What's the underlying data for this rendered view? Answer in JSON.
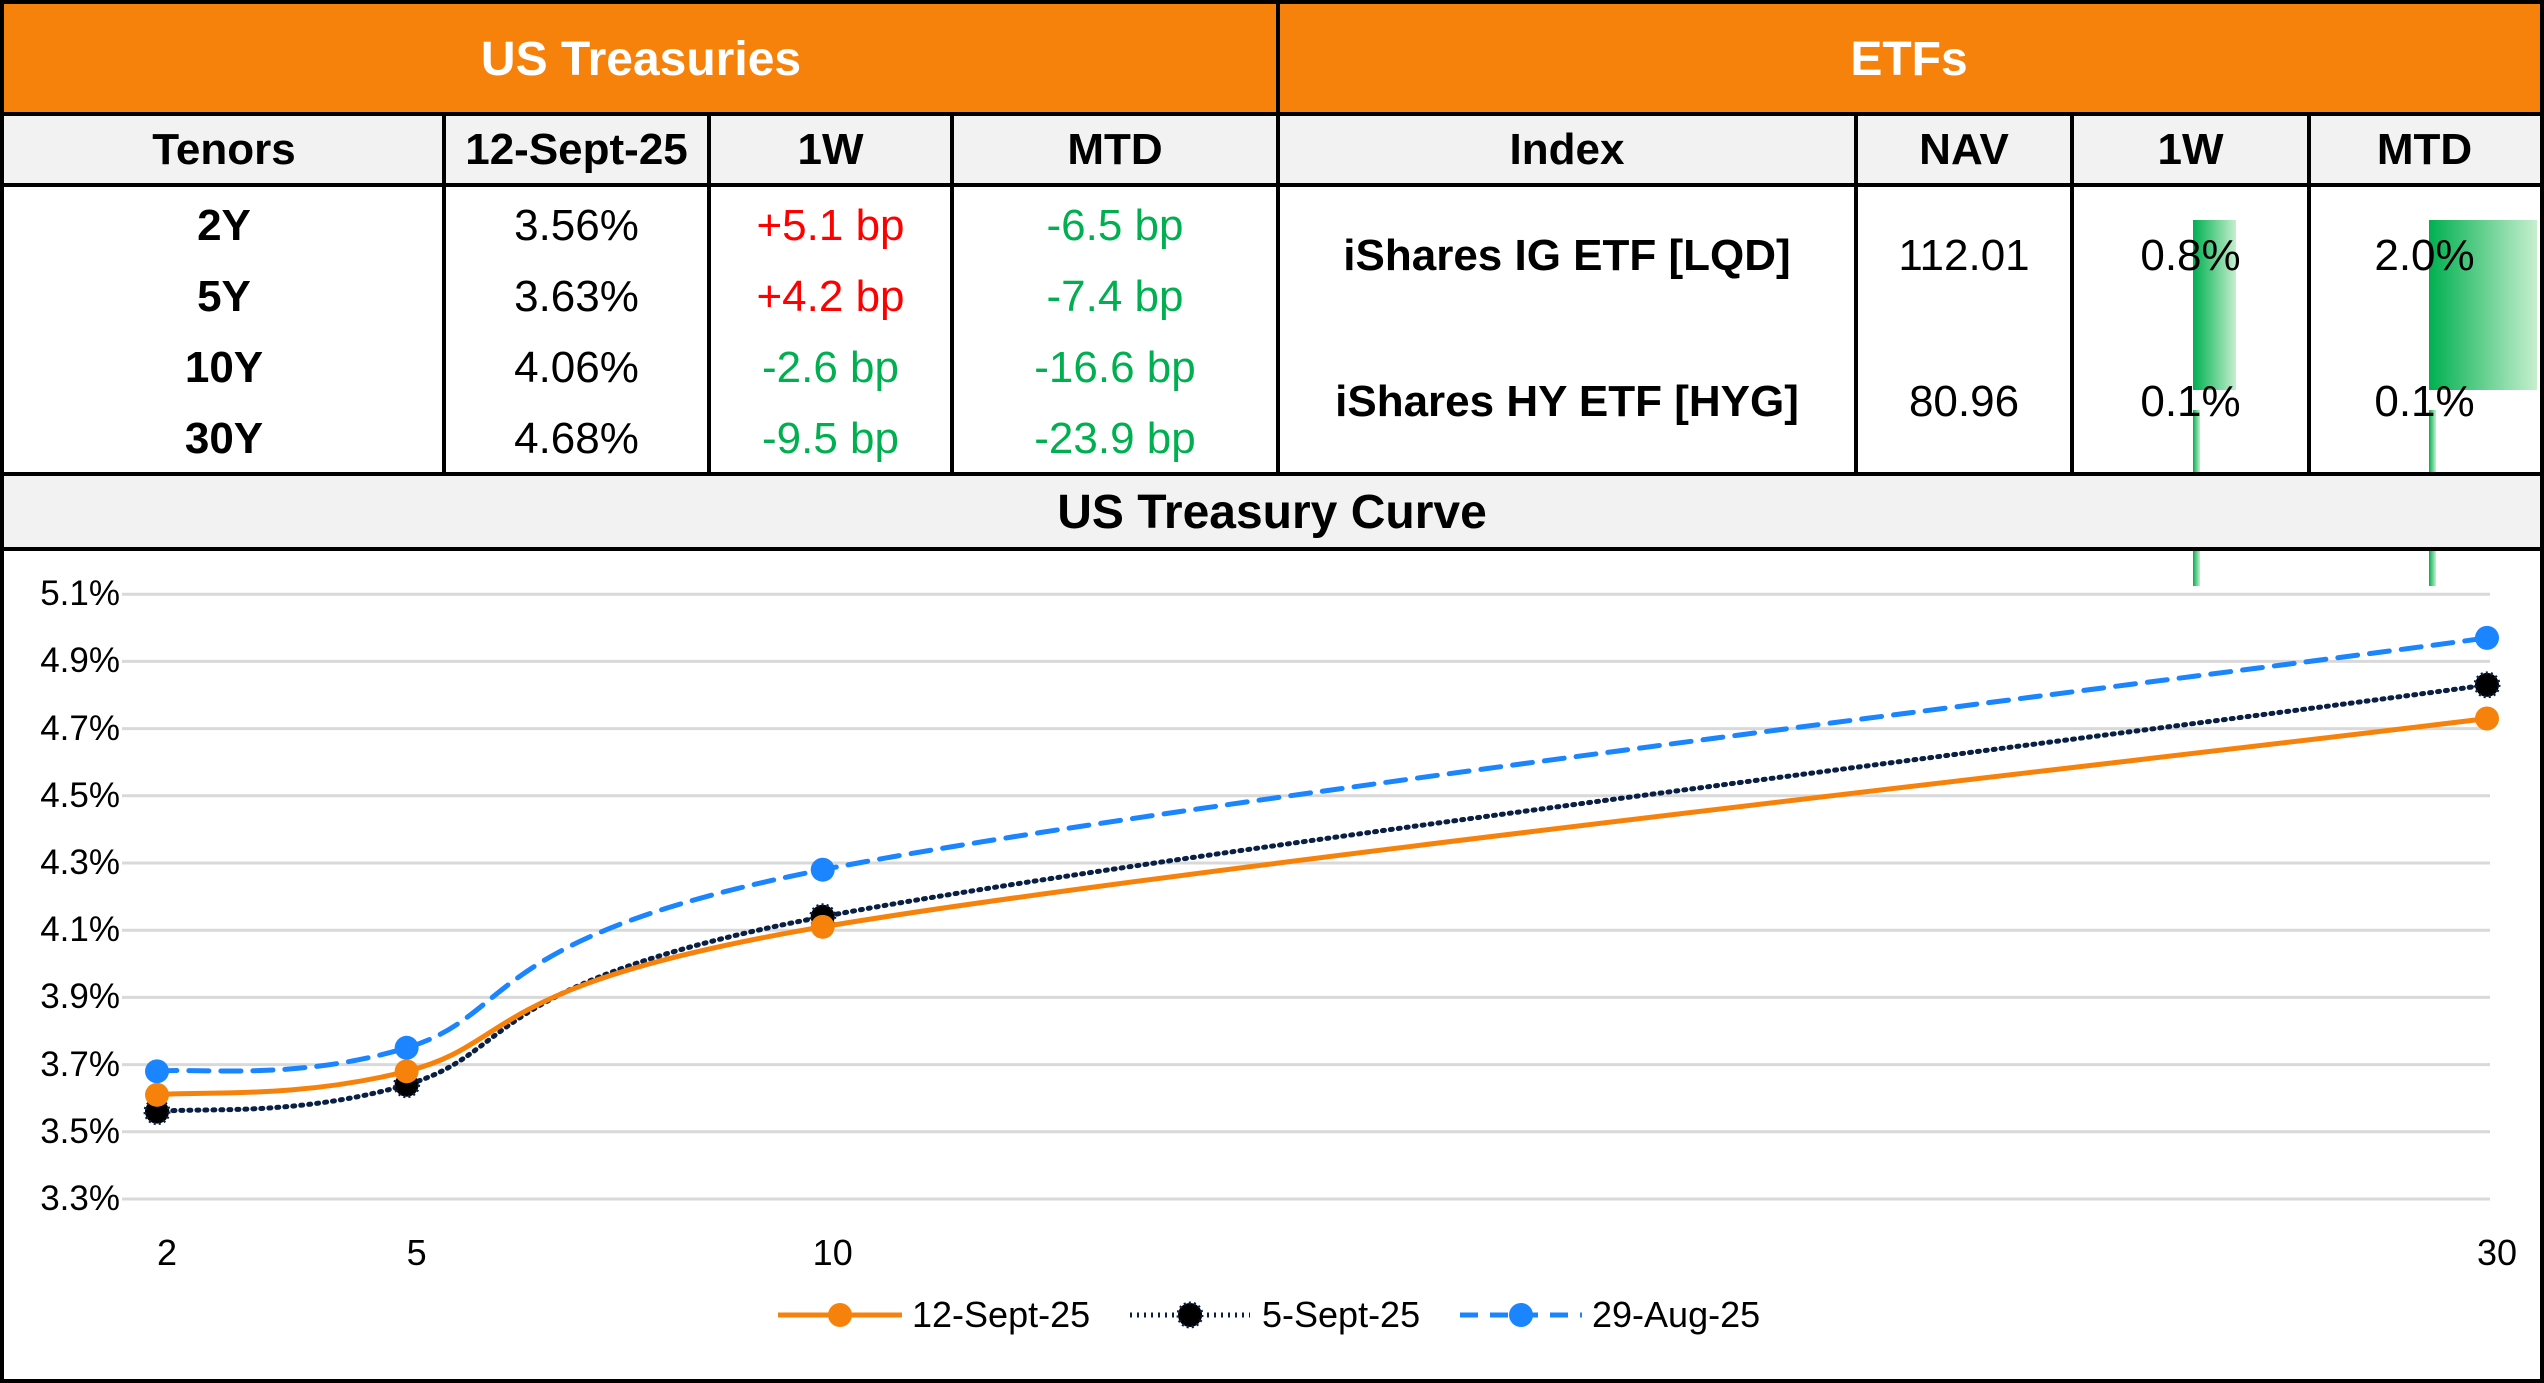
{
  "treasuries": {
    "title": "US Treasuries",
    "headers": [
      "Tenors",
      "12-Sept-25",
      "1W",
      "MTD"
    ],
    "rows": [
      {
        "tenor": "2Y",
        "yield": "3.56%",
        "w1": "+5.1 bp",
        "mtd": "-6.5 bp"
      },
      {
        "tenor": "5Y",
        "yield": "3.63%",
        "w1": "+4.2 bp",
        "mtd": "-7.4 bp"
      },
      {
        "tenor": "10Y",
        "yield": "4.06%",
        "w1": "-2.6 bp",
        "mtd": "-16.6 bp"
      },
      {
        "tenor": "30Y",
        "yield": "4.68%",
        "w1": "-9.5 bp",
        "mtd": "-23.9 bp"
      }
    ]
  },
  "etfs": {
    "title": "ETFs",
    "headers": [
      "Index",
      "NAV",
      "1W",
      "MTD"
    ],
    "rows": [
      {
        "name": "iShares IG ETF [LQD]",
        "nav": "112.01",
        "w1": "0.8%",
        "mtd": "2.0%",
        "w1_value": 0.8,
        "mtd_value": 2.0
      },
      {
        "name": "iShares HY ETF [HYG]",
        "nav": "80.96",
        "w1": "0.1%",
        "mtd": "0.1%",
        "w1_value": 0.1,
        "mtd_value": 0.1
      }
    ]
  },
  "colors": {
    "orange": "#f7820b",
    "up": "#ff0000",
    "down": "#00b050",
    "navy": "#0a1f44",
    "blue": "#1a85ff"
  },
  "chart_data": {
    "type": "line",
    "title": "US Treasury Curve",
    "x": [
      2,
      5,
      10,
      30
    ],
    "x_tick_labels": [
      "2",
      "5",
      "10",
      "30"
    ],
    "ylim": [
      3.25,
      5.15
    ],
    "y_ticks": [
      3.25,
      3.45,
      3.65,
      3.85,
      4.05,
      4.25,
      4.45,
      4.65,
      4.85,
      5.05
    ],
    "y_tick_labels": [
      "3.3%",
      "3.5%",
      "3.7%",
      "3.9%",
      "4.1%",
      "4.3%",
      "4.5%",
      "4.7%",
      "4.9%",
      "5.1%"
    ],
    "grid": true,
    "legend": "bottom",
    "series": [
      {
        "name": "12-Sept-25",
        "values": [
          3.56,
          3.63,
          4.06,
          4.68
        ],
        "color": "#f7820b",
        "style": "solid"
      },
      {
        "name": "5-Sept-25",
        "values": [
          3.51,
          3.59,
          4.09,
          4.78
        ],
        "color": "#0a1f44",
        "style": "dotted"
      },
      {
        "name": "29-Aug-25",
        "values": [
          3.63,
          3.7,
          4.23,
          4.92
        ],
        "color": "#1a85ff",
        "style": "dashed"
      }
    ]
  }
}
